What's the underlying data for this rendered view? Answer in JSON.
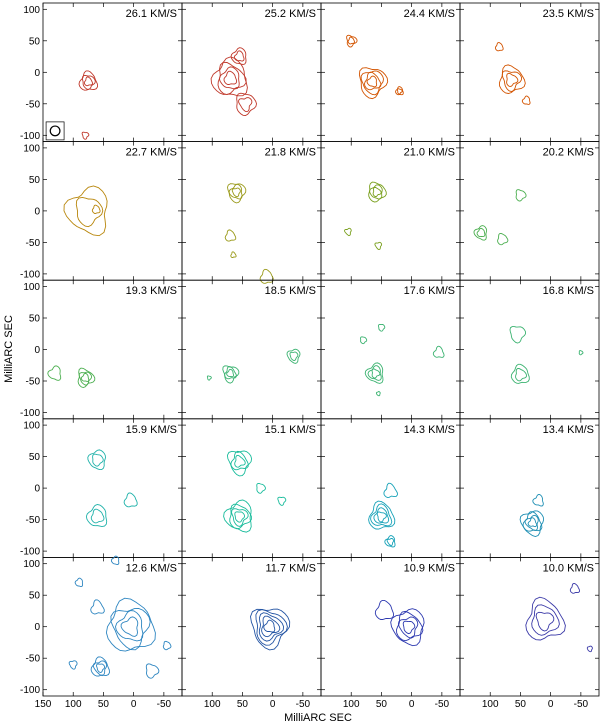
{
  "chart_data": {
    "type": "contour",
    "figure_type": "channel-map",
    "xlabel": "MilliARC SEC",
    "ylabel": "MilliARC SEC",
    "xlim": [
      150,
      -80
    ],
    "ylim": [
      -110,
      110
    ],
    "x_ticks": [
      150,
      100,
      50,
      0,
      -50
    ],
    "y_ticks": [
      100,
      50,
      0,
      -50,
      -100
    ],
    "grid": {
      "rows": 5,
      "cols": 4
    },
    "beam": {
      "panel": 0,
      "x": 130,
      "y": -93,
      "radius": 8
    },
    "channels": [
      {
        "velocity_label": "26.1 KM/S",
        "color": "#c0392b",
        "components": [
          {
            "x": 75,
            "y": -15,
            "r": 14,
            "levels": 3
          },
          {
            "x": 80,
            "y": -100,
            "r": 5,
            "levels": 1
          }
        ]
      },
      {
        "velocity_label": "25.2 KM/S",
        "color": "#c0392b",
        "components": [
          {
            "x": 70,
            "y": -10,
            "r": 28,
            "levels": 4
          },
          {
            "x": 55,
            "y": 25,
            "r": 12,
            "levels": 2
          },
          {
            "x": 45,
            "y": -50,
            "r": 16,
            "levels": 2
          }
        ]
      },
      {
        "velocity_label": "24.4 KM/S",
        "color": "#d35400",
        "components": [
          {
            "x": 65,
            "y": -15,
            "r": 22,
            "levels": 4
          },
          {
            "x": 100,
            "y": 50,
            "r": 8,
            "levels": 2
          },
          {
            "x": 20,
            "y": -30,
            "r": 6,
            "levels": 2
          }
        ]
      },
      {
        "velocity_label": "23.5 KM/S",
        "color": "#d35400",
        "components": [
          {
            "x": 65,
            "y": -12,
            "r": 20,
            "levels": 3
          },
          {
            "x": 85,
            "y": 40,
            "r": 6,
            "levels": 1
          },
          {
            "x": 40,
            "y": -45,
            "r": 6,
            "levels": 1
          }
        ]
      },
      {
        "velocity_label": "22.7 KM/S",
        "color": "#b8860b",
        "components": [
          {
            "x": 75,
            "y": 0,
            "r": 34,
            "levels": 2
          },
          {
            "x": 62,
            "y": 2,
            "r": 6,
            "levels": 1
          }
        ]
      },
      {
        "velocity_label": "21.8 KM/S",
        "color": "#9a9a1a",
        "components": [
          {
            "x": 60,
            "y": 30,
            "r": 14,
            "levels": 3
          },
          {
            "x": 70,
            "y": -40,
            "r": 8,
            "levels": 1
          },
          {
            "x": 65,
            "y": -70,
            "r": 4,
            "levels": 1
          },
          {
            "x": 10,
            "y": -105,
            "r": 10,
            "levels": 1
          }
        ]
      },
      {
        "velocity_label": "21.0 KM/S",
        "color": "#7aa01e",
        "components": [
          {
            "x": 58,
            "y": 30,
            "r": 14,
            "levels": 3
          },
          {
            "x": 105,
            "y": -33,
            "r": 5,
            "levels": 1
          },
          {
            "x": 55,
            "y": -55,
            "r": 5,
            "levels": 1
          }
        ]
      },
      {
        "velocity_label": "20.2 KM/S",
        "color": "#4caf50",
        "components": [
          {
            "x": 115,
            "y": -35,
            "r": 10,
            "levels": 2
          },
          {
            "x": 80,
            "y": -45,
            "r": 8,
            "levels": 1
          },
          {
            "x": 50,
            "y": 25,
            "r": 8,
            "levels": 1
          }
        ]
      },
      {
        "velocity_label": "19.3 KM/S",
        "color": "#4caf50",
        "components": [
          {
            "x": 130,
            "y": -38,
            "r": 10,
            "levels": 1
          },
          {
            "x": 80,
            "y": -45,
            "r": 13,
            "levels": 3
          }
        ]
      },
      {
        "velocity_label": "18.5 KM/S",
        "color": "#3cb371",
        "components": [
          {
            "x": 70,
            "y": -38,
            "r": 12,
            "levels": 3
          },
          {
            "x": 105,
            "y": -45,
            "r": 3,
            "levels": 1
          },
          {
            "x": -35,
            "y": -10,
            "r": 10,
            "levels": 2
          }
        ]
      },
      {
        "velocity_label": "17.6 KM/S",
        "color": "#3cb371",
        "components": [
          {
            "x": 60,
            "y": -38,
            "r": 14,
            "levels": 3
          },
          {
            "x": 80,
            "y": 15,
            "r": 5,
            "levels": 1
          },
          {
            "x": 50,
            "y": 35,
            "r": 5,
            "levels": 1
          },
          {
            "x": -45,
            "y": -5,
            "r": 8,
            "levels": 1
          },
          {
            "x": 55,
            "y": -70,
            "r": 3,
            "levels": 1
          }
        ]
      },
      {
        "velocity_label": "16.8 KM/S",
        "color": "#3cb371",
        "components": [
          {
            "x": 50,
            "y": -40,
            "r": 14,
            "levels": 2
          },
          {
            "x": 55,
            "y": 25,
            "r": 12,
            "levels": 1
          },
          {
            "x": -50,
            "y": -5,
            "r": 3,
            "levels": 1
          }
        ]
      },
      {
        "velocity_label": "15.9 KM/S",
        "color": "#20b2aa",
        "components": [
          {
            "x": 60,
            "y": 45,
            "r": 14,
            "levels": 2
          },
          {
            "x": 60,
            "y": -45,
            "r": 16,
            "levels": 2
          },
          {
            "x": 5,
            "y": -20,
            "r": 10,
            "levels": 1
          }
        ]
      },
      {
        "velocity_label": "15.1 KM/S",
        "color": "#1abc9c",
        "components": [
          {
            "x": 55,
            "y": 42,
            "r": 18,
            "levels": 3
          },
          {
            "x": 55,
            "y": -45,
            "r": 22,
            "levels": 4
          },
          {
            "x": 20,
            "y": 0,
            "r": 7,
            "levels": 1
          },
          {
            "x": -15,
            "y": -20,
            "r": 6,
            "levels": 1
          }
        ]
      },
      {
        "velocity_label": "14.3 KM/S",
        "color": "#17a2b8",
        "components": [
          {
            "x": 50,
            "y": -45,
            "r": 20,
            "levels": 4
          },
          {
            "x": 35,
            "y": -85,
            "r": 8,
            "levels": 2
          },
          {
            "x": 35,
            "y": -5,
            "r": 10,
            "levels": 1
          }
        ]
      },
      {
        "velocity_label": "13.4 KM/S",
        "color": "#1f8fb4",
        "components": [
          {
            "x": 30,
            "y": -55,
            "r": 18,
            "levels": 4
          },
          {
            "x": 20,
            "y": -20,
            "r": 8,
            "levels": 1
          }
        ]
      },
      {
        "velocity_label": "12.6 KM/S",
        "color": "#2e86c1",
        "components": [
          {
            "x": 5,
            "y": 0,
            "r": 38,
            "levels": 4
          },
          {
            "x": 55,
            "y": -65,
            "r": 14,
            "levels": 3
          },
          {
            "x": 60,
            "y": 30,
            "r": 10,
            "levels": 1
          },
          {
            "x": 90,
            "y": 70,
            "r": 6,
            "levels": 1
          },
          {
            "x": 30,
            "y": 105,
            "r": 6,
            "levels": 1
          },
          {
            "x": -30,
            "y": -70,
            "r": 10,
            "levels": 1
          },
          {
            "x": -55,
            "y": -30,
            "r": 6,
            "levels": 1
          },
          {
            "x": 100,
            "y": -60,
            "r": 6,
            "levels": 1
          }
        ]
      },
      {
        "velocity_label": "11.7 KM/S",
        "color": "#2455a4",
        "components": [
          {
            "x": 5,
            "y": 0,
            "r": 30,
            "levels": 5
          }
        ]
      },
      {
        "velocity_label": "10.9 KM/S",
        "color": "#2e3ab0",
        "components": [
          {
            "x": 5,
            "y": 0,
            "r": 26,
            "levels": 4
          },
          {
            "x": 45,
            "y": 25,
            "r": 14,
            "levels": 1
          }
        ]
      },
      {
        "velocity_label": "10.0 KM/S",
        "color": "#3b3aa8",
        "components": [
          {
            "x": 10,
            "y": 10,
            "r": 30,
            "levels": 3
          },
          {
            "x": -40,
            "y": 60,
            "r": 7,
            "levels": 1
          },
          {
            "x": -65,
            "y": -35,
            "r": 4,
            "levels": 1
          }
        ]
      }
    ]
  }
}
